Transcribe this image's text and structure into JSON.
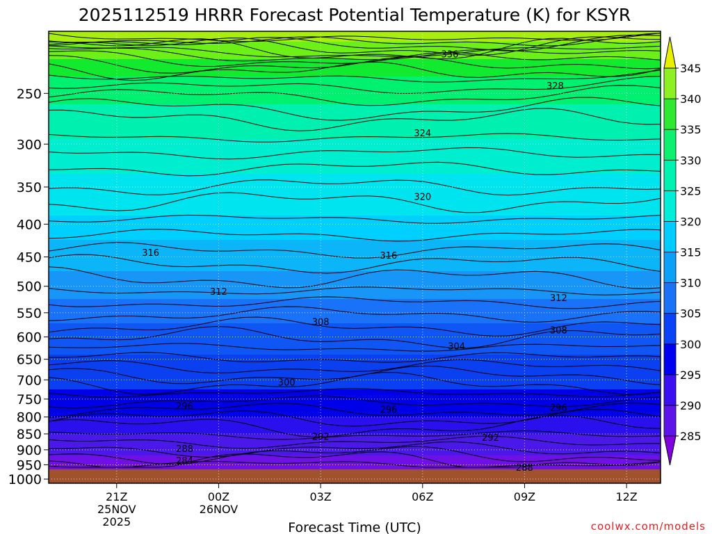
{
  "chart_data": {
    "type": "heatmap",
    "title": "2025112519 HRRR Forecast Potential Temperature (K) for KSYR",
    "xlabel": "Forecast Time (UTC)",
    "ylabel": "",
    "y_axis": {
      "ticks": [
        250,
        300,
        350,
        400,
        450,
        500,
        550,
        600,
        650,
        700,
        750,
        800,
        850,
        900,
        950,
        1000
      ],
      "range": [
        200,
        1015
      ]
    },
    "x_axis": {
      "ticks": [
        {
          "hour": 2,
          "lines": [
            "21Z",
            "25NOV",
            "2025"
          ]
        },
        {
          "hour": 5,
          "lines": [
            "00Z",
            "26NOV"
          ]
        },
        {
          "hour": 8,
          "lines": [
            "03Z"
          ]
        },
        {
          "hour": 11,
          "lines": [
            "06Z"
          ]
        },
        {
          "hour": 14,
          "lines": [
            "09Z"
          ]
        },
        {
          "hour": 17,
          "lines": [
            "12Z"
          ]
        }
      ],
      "range": [
        0,
        18
      ]
    },
    "grid": true,
    "colorbar": {
      "placement": "right",
      "levels": [
        285,
        290,
        295,
        300,
        305,
        310,
        315,
        320,
        325,
        330,
        335,
        340,
        345
      ],
      "colors": [
        "#8000e0",
        "#5d14e8",
        "#3a10f0",
        "#0000f0",
        "#0a42f8",
        "#1a72f8",
        "#0ca0f8",
        "#00ccff",
        "#00eed8",
        "#00f2b0",
        "#10f070",
        "#2ee832",
        "#8cf022",
        "#e8f000"
      ]
    },
    "contour_labels": [
      {
        "value": "336",
        "hour": 11.8,
        "p": 217
      },
      {
        "value": "328",
        "hour": 14.9,
        "p": 243
      },
      {
        "value": "324",
        "hour": 11.0,
        "p": 288
      },
      {
        "value": "320",
        "hour": 11.0,
        "p": 362
      },
      {
        "value": "316",
        "hour": 3.0,
        "p": 443
      },
      {
        "value": "316",
        "hour": 10.0,
        "p": 447
      },
      {
        "value": "312",
        "hour": 5.0,
        "p": 509
      },
      {
        "value": "312",
        "hour": 15.0,
        "p": 521
      },
      {
        "value": "308",
        "hour": 8.0,
        "p": 568
      },
      {
        "value": "308",
        "hour": 15.0,
        "p": 585
      },
      {
        "value": "304",
        "hour": 12.0,
        "p": 620
      },
      {
        "value": "300",
        "hour": 7.0,
        "p": 706
      },
      {
        "value": "296",
        "hour": 4.0,
        "p": 768
      },
      {
        "value": "296",
        "hour": 10.0,
        "p": 778
      },
      {
        "value": "296",
        "hour": 15.0,
        "p": 773
      },
      {
        "value": "292",
        "hour": 8.0,
        "p": 857
      },
      {
        "value": "292",
        "hour": 13.0,
        "p": 861
      },
      {
        "value": "288",
        "hour": 4.0,
        "p": 896
      },
      {
        "value": "284",
        "hour": 4.0,
        "p": 935
      },
      {
        "value": "288",
        "hour": 14.0,
        "p": 958
      }
    ]
  },
  "credit": "coolwx.com/models"
}
